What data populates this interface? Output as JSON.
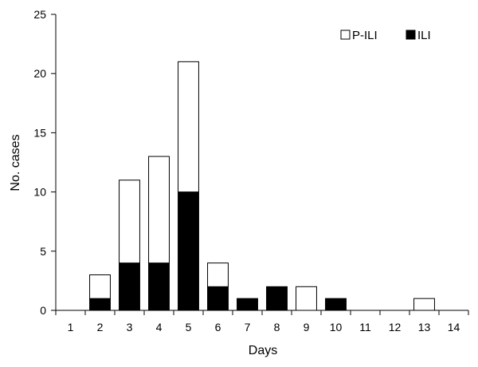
{
  "chart_data": {
    "type": "bar",
    "stacked": true,
    "categories": [
      "1",
      "2",
      "3",
      "4",
      "5",
      "6",
      "7",
      "8",
      "9",
      "10",
      "11",
      "12",
      "13",
      "14"
    ],
    "series": [
      {
        "name": "ILI",
        "color": "#000000",
        "values": [
          0,
          1,
          4,
          4,
          10,
          2,
          1,
          2,
          0,
          1,
          0,
          0,
          0,
          0
        ]
      },
      {
        "name": "P-ILI",
        "color": "#ffffff",
        "values": [
          0,
          2,
          7,
          9,
          11,
          2,
          0,
          0,
          2,
          0,
          0,
          0,
          1,
          0
        ]
      }
    ],
    "xlabel": "Days",
    "ylabel": "No. cases",
    "ylim": [
      0,
      25
    ],
    "yticks": [
      0,
      5,
      10,
      15,
      20,
      25
    ],
    "grid": false,
    "legend_position": "top-right"
  }
}
